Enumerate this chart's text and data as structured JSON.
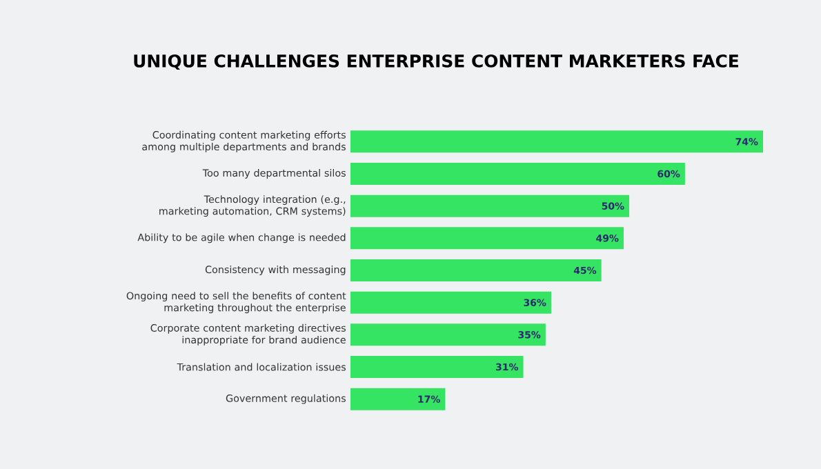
{
  "chart_data": {
    "type": "bar",
    "orientation": "horizontal",
    "title": "UNIQUE CHALLENGES ENTERPRISE CONTENT MARKETERS FACE",
    "categories": [
      "Coordinating content marketing efforts among multiple departments and brands",
      "Too many departmental silos",
      "Technology integration (e.g., marketing automation, CRM systems)",
      "Ability to be agile when change is needed",
      "Consistency with messaging",
      "Ongoing need to sell the benefits of content marketing throughout the enterprise",
      "Corporate content marketing directives inappropriate for brand audience",
      "Translation and localization issues",
      "Government regulations"
    ],
    "values": [
      74,
      60,
      50,
      49,
      45,
      36,
      35,
      31,
      17
    ],
    "value_labels": [
      "74%",
      "60%",
      "50%",
      "49%",
      "45%",
      "36%",
      "35%",
      "31%",
      "17%"
    ],
    "color": "#36e463"
  }
}
